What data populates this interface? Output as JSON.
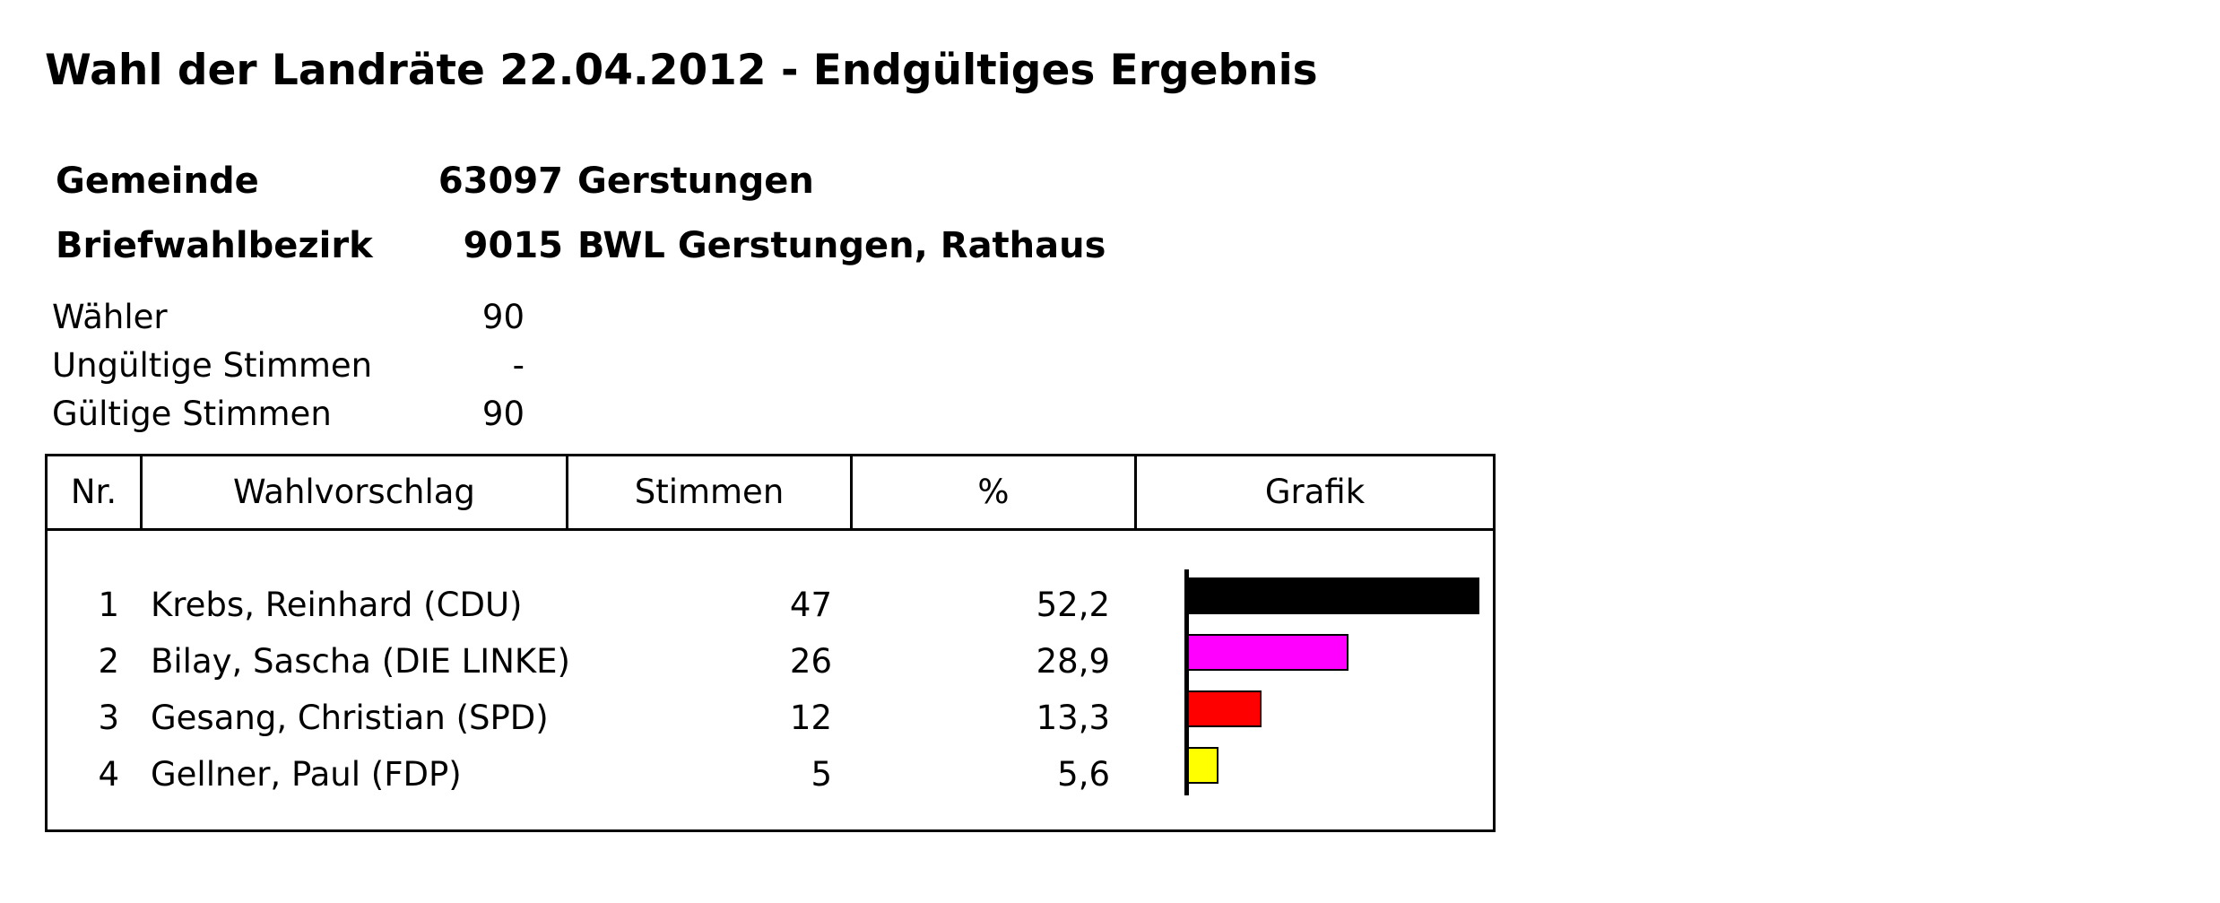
{
  "title": "Wahl der Landräte 22.04.2012 - Endgültiges Ergebnis",
  "gemeinde": {
    "label": "Gemeinde",
    "code": "63097",
    "name": "Gerstungen"
  },
  "bezirk": {
    "label": "Briefwahlbezirk",
    "code": "9015",
    "name": "BWL Gerstungen, Rathaus"
  },
  "stats": {
    "waehler": {
      "label": "Wähler",
      "value": "90"
    },
    "ungueltig": {
      "label": "Ungültige Stimmen",
      "value": "-"
    },
    "gueltig": {
      "label": "Gültige Stimmen",
      "value": "90"
    }
  },
  "table": {
    "headers": {
      "nr": "Nr.",
      "wahlvorschlag": "Wahlvorschlag",
      "stimmen": "Stimmen",
      "prozent": "%",
      "grafik": "Grafik"
    },
    "rows": [
      {
        "nr": "1",
        "name": "Krebs, Reinhard (CDU)",
        "votes": "47",
        "percent": "52,2",
        "share": 52.2,
        "color": "#000000"
      },
      {
        "nr": "2",
        "name": "Bilay, Sascha (DIE LINKE)",
        "votes": "26",
        "percent": "28,9",
        "share": 28.9,
        "color": "#ff00ff"
      },
      {
        "nr": "3",
        "name": "Gesang, Christian (SPD)",
        "votes": "12",
        "percent": "13,3",
        "share": 13.3,
        "color": "#ff0000"
      },
      {
        "nr": "4",
        "name": "Gellner, Paul (FDP)",
        "votes": "5",
        "percent": "5,6",
        "share": 5.6,
        "color": "#ffff00"
      }
    ]
  }
}
